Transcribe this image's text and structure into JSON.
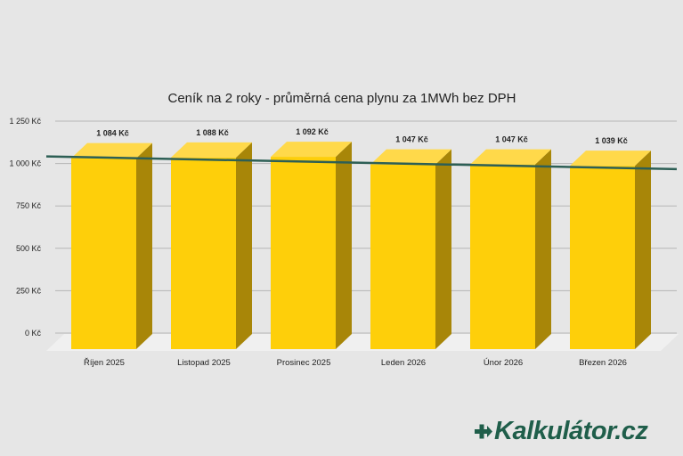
{
  "colors": {
    "background": "#e6e6e6",
    "bar_front": "#fecf0a",
    "bar_top": "#ffd94a",
    "bar_side": "#a88608",
    "trend_line": "#2d5f55",
    "grid": "#b5b5b5",
    "floor": "#f0f0f0",
    "logo": "#1f5e4a"
  },
  "logo": {
    "text": "Kalkulátor.cz",
    "icon": "plus-arrow-icon"
  },
  "chart_data": {
    "type": "bar",
    "title": "Ceník na 2 roky - průměrná cena plynu za 1MWh bez DPH",
    "xlabel": "",
    "ylabel": "",
    "categories": [
      "Říjen 2025",
      "Listopad 2025",
      "Prosinec 2025",
      "Leden 2026",
      "Únor 2026",
      "Březen 2026"
    ],
    "values": [
      1084,
      1088,
      1092,
      1047,
      1047,
      1039
    ],
    "data_labels": [
      "1 084 Kč",
      "1 088 Kč",
      "1 092 Kč",
      "1 047 Kč",
      "1 047 Kč",
      "1 039 Kč"
    ],
    "ylim": [
      0,
      1250
    ],
    "yticks": [
      0,
      250,
      500,
      750,
      1000,
      1250
    ],
    "ytick_labels": [
      "0 Kč",
      "250 Kč",
      "500 Kč",
      "750 Kč",
      "1 000 Kč",
      "1 250 Kč"
    ],
    "grid": true,
    "legend": "none",
    "bar_style": "3d",
    "trendline": {
      "type": "linear",
      "start": 1105,
      "end": 1030
    }
  }
}
